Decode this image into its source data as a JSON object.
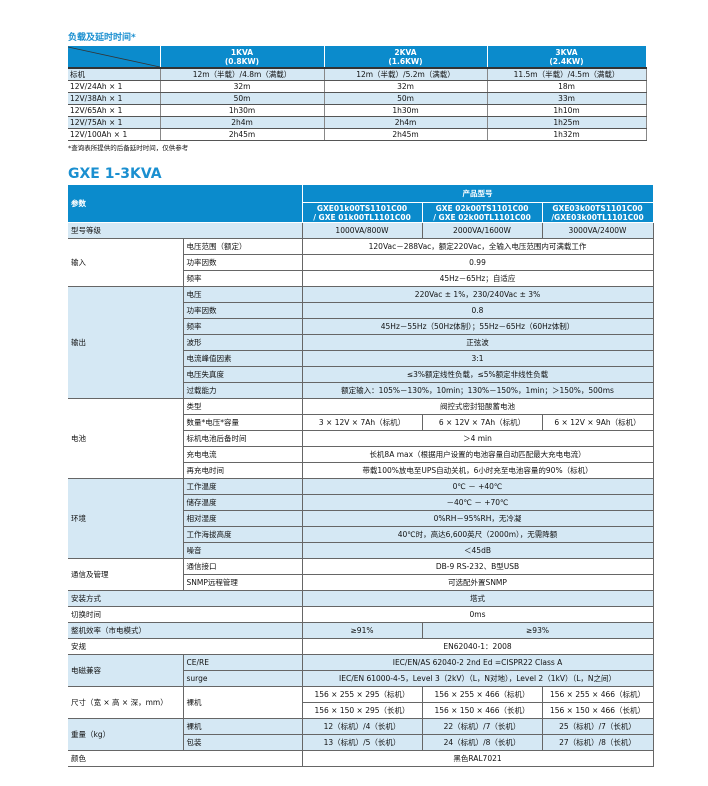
{
  "backup": {
    "title": "负载及延时时间*",
    "columns": [
      {
        "kva": "1KVA",
        "kw": "(0.8KW)"
      },
      {
        "kva": "2KVA",
        "kw": "(1.6KW)"
      },
      {
        "kva": "3KVA",
        "kw": "(2.4KW)"
      }
    ],
    "rows": [
      {
        "label": "标机",
        "values": [
          "12m（半载）/4.8m（满载）",
          "12m（半载）/5.2m（满载）",
          "11.5m（半载）/4.5m（满载）"
        ]
      },
      {
        "label": "12V/24Ah × 1",
        "values": [
          "32m",
          "32m",
          "18m"
        ]
      },
      {
        "label": "12V/38Ah × 1",
        "values": [
          "50m",
          "50m",
          "33m"
        ]
      },
      {
        "label": "12V/65Ah × 1",
        "values": [
          "1h30m",
          "1h30m",
          "1h10m"
        ]
      },
      {
        "label": "12V/75Ah × 1",
        "values": [
          "2h4m",
          "2h4m",
          "1h25m"
        ]
      },
      {
        "label": "12V/100Ah × 1",
        "values": [
          "2h45m",
          "2h45m",
          "1h32m"
        ]
      }
    ],
    "note": "*查询表所提供的后备延时时间，仅供参考"
  },
  "spec": {
    "title": "GXE 1-3KVA",
    "param_label": "参数",
    "model_label": "产品型号",
    "models": [
      "GXE01k00TS1101C00 / GXE 01k00TL1101C00",
      "GXE 02k00TS1101C00 / GXE 02k00TL1101C00",
      "GXE03k00TS1101C00 /GXE03k00TL1101C00"
    ],
    "groups": [
      {
        "label": "型号等级",
        "shaded": true,
        "rows": [
          {
            "values": [
              "1000VA/800W",
              "2000VA/1600W",
              "3000VA/2400W"
            ]
          }
        ]
      },
      {
        "label": "输入",
        "shaded": false,
        "rows": [
          {
            "label": "电压范围（额定）",
            "values": [
              "120Vac－288Vac，额定220Vac，全输入电压范围内可满载工作"
            ]
          },
          {
            "label": "功率因数",
            "values": [
              "0.99"
            ]
          },
          {
            "label": "频率",
            "values": [
              "45Hz－65Hz；自适应"
            ]
          }
        ]
      },
      {
        "label": "输出",
        "shaded": true,
        "rows": [
          {
            "label": "电压",
            "values": [
              "220Vac ± 1%，230/240Vac ± 3%"
            ]
          },
          {
            "label": "功率因数",
            "values": [
              "0.8"
            ]
          },
          {
            "label": "频率",
            "values": [
              "45Hz－55Hz（50Hz体制）；55Hz－65Hz（60Hz体制）"
            ]
          },
          {
            "label": "波形",
            "values": [
              "正弦波"
            ]
          },
          {
            "label": "电流峰值因素",
            "values": [
              "3:1"
            ]
          },
          {
            "label": "电压失真度",
            "values": [
              "≤3%额定线性负载，≤5%额定非线性负载"
            ]
          },
          {
            "label": "过载能力",
            "values": [
              "额定输入：105%－130%，10min；130%－150%，1min；＞150%，500ms"
            ]
          }
        ]
      },
      {
        "label": "电池",
        "shaded": false,
        "rows": [
          {
            "label": "类型",
            "values": [
              "阀控式密封铅酸蓄电池"
            ]
          },
          {
            "label": "数量*电压*容量",
            "values": [
              "3 × 12V × 7Ah（标机）",
              "6 × 12V × 7Ah（标机）",
              "6 × 12V × 9Ah（标机）"
            ]
          },
          {
            "label": "标机电池后备时间",
            "values": [
              "＞4 min"
            ]
          },
          {
            "label": "充电电流",
            "values": [
              "长机8A max（根据用户设置的电池容量自动匹配最大充电电流）"
            ]
          },
          {
            "label": "再充电时间",
            "values": [
              "带载100%放电至UPS自动关机，6小时充至电池容量的90%（标机）"
            ]
          }
        ]
      },
      {
        "label": "环境",
        "shaded": true,
        "rows": [
          {
            "label": "工作温度",
            "values": [
              "0℃ － +40℃"
            ]
          },
          {
            "label": "储存温度",
            "values": [
              "－40℃ － +70℃"
            ]
          },
          {
            "label": "相对湿度",
            "values": [
              "0%RH－95%RH，无冷凝"
            ]
          },
          {
            "label": "工作海拔高度",
            "values": [
              "40℃时，高达6,600英尺（2000m），无需降额"
            ]
          },
          {
            "label": "噪音",
            "values": [
              "＜45dB"
            ]
          }
        ]
      },
      {
        "label": "通信及管理",
        "shaded": false,
        "rows": [
          {
            "label": "通信接口",
            "values": [
              "DB-9 RS-232、B型USB"
            ]
          },
          {
            "label": "SNMP远程管理",
            "values": [
              "可选配外置SNMP"
            ]
          }
        ]
      },
      {
        "label": "安装方式",
        "shaded": true,
        "rows": [
          {
            "values": [
              "塔式"
            ]
          }
        ]
      },
      {
        "label": "切换时间",
        "shaded": false,
        "rows": [
          {
            "values": [
              "0ms"
            ]
          }
        ]
      },
      {
        "label": "整机效率（市电模式）",
        "shaded": true,
        "rows": [
          {
            "values": [
              "≥91%",
              "≥93%"
            ]
          }
        ]
      },
      {
        "label": "安规",
        "shaded": false,
        "rows": [
          {
            "values": [
              "EN62040-1：2008"
            ]
          }
        ]
      },
      {
        "label": "电磁兼容",
        "shaded": true,
        "rows": [
          {
            "label": "CE/RE",
            "values": [
              "IEC/EN/AS 62040-2  2nd Ed =CISPR22 Class A"
            ]
          },
          {
            "label": "surge",
            "values": [
              "IEC/EN 61000-4-5，Level 3（2kV）（L，N对地），Level 2（1kV）（L，N之间）"
            ]
          }
        ]
      },
      {
        "label": "尺寸（宽 × 高 × 深，mm）",
        "shaded": false,
        "rows": [
          {
            "label": "裸机",
            "values": [
              "156 × 255 × 295（标机）",
              "156 × 255 × 466（标机）",
              "156 × 255 × 466（标机）"
            ]
          },
          {
            "values": [
              "156 × 150 × 295（长机）",
              "156 × 150 × 466（长机）",
              "156 × 150 × 466（长机）"
            ]
          }
        ]
      },
      {
        "label": "重量（kg）",
        "shaded": true,
        "rows": [
          {
            "label": "裸机",
            "values": [
              "12（标机）/4（长机）",
              "22（标机）/7（长机）",
              "25（标机）/7（长机）"
            ]
          },
          {
            "label": "包装",
            "values": [
              "13（标机）/5（长机）",
              "24（标机）/8（长机）",
              "27（标机）/8（长机）"
            ]
          }
        ]
      },
      {
        "label": "颜色",
        "shaded": false,
        "rows": [
          {
            "values": [
              "黑色RAL7021"
            ]
          }
        ]
      }
    ]
  }
}
